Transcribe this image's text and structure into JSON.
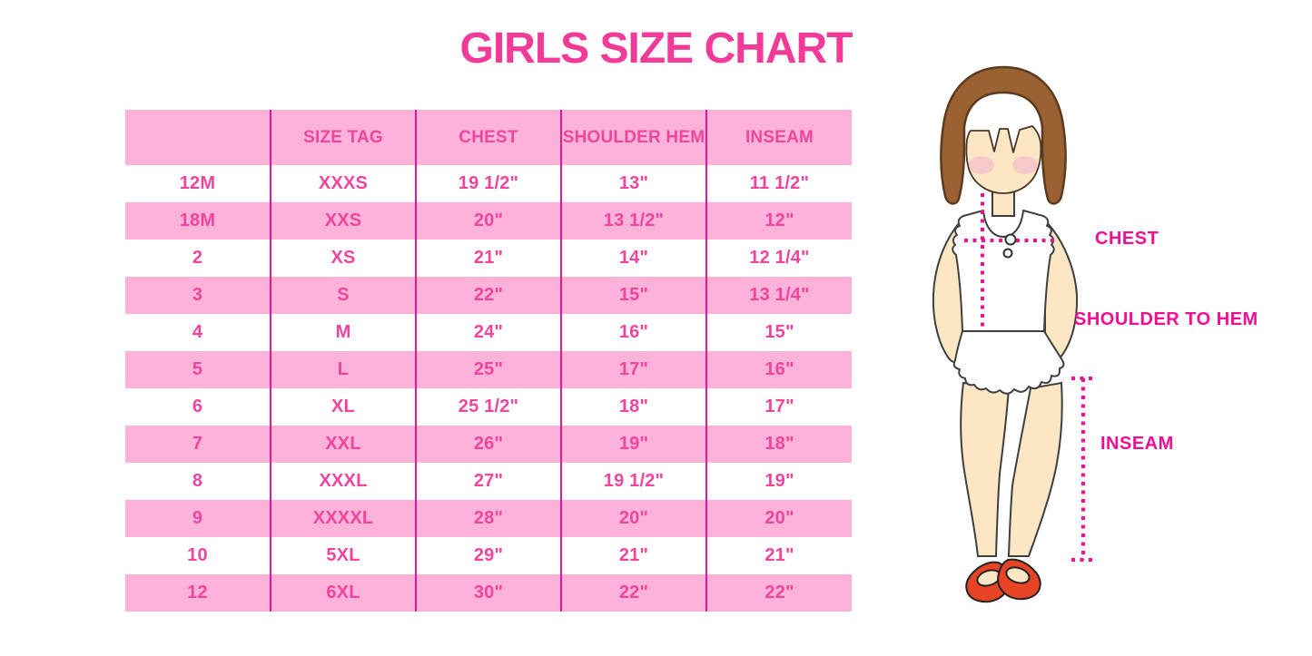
{
  "title": "GIRLS SIZE CHART",
  "chart_data": {
    "type": "table",
    "title": "GIRLS SIZE CHART",
    "columns": [
      "",
      "SIZE TAG",
      "CHEST",
      "SHOULDER HEM",
      "INSEAM"
    ],
    "rows": [
      [
        "12M",
        "XXXS",
        "19 1/2\"",
        "13\"",
        "11 1/2\""
      ],
      [
        "18M",
        "XXS",
        "20\"",
        "13 1/2\"",
        "12\""
      ],
      [
        "2",
        "XS",
        "21\"",
        "14\"",
        "12 1/4\""
      ],
      [
        "3",
        "S",
        "22\"",
        "15\"",
        "13 1/4\""
      ],
      [
        "4",
        "M",
        "24\"",
        "16\"",
        "15\""
      ],
      [
        "5",
        "L",
        "25\"",
        "17\"",
        "16\""
      ],
      [
        "6",
        "XL",
        "25 1/2\"",
        "18\"",
        "17\""
      ],
      [
        "7",
        "XXL",
        "26\"",
        "19\"",
        "18\""
      ],
      [
        "8",
        "XXXL",
        "27\"",
        "19 1/2\"",
        "19\""
      ],
      [
        "9",
        "XXXXL",
        "28\"",
        "20\"",
        "20\""
      ],
      [
        "10",
        "5XL",
        "29\"",
        "21\"",
        "21\""
      ],
      [
        "12",
        "6XL",
        "30\"",
        "22\"",
        "22\""
      ]
    ]
  },
  "figure": {
    "labels": {
      "chest": "CHEST",
      "shoulder_to_hem": "SHOULDER TO HEM",
      "inseam": "INSEAM"
    }
  },
  "colors": {
    "title_pink": "#F23A99",
    "row_pink": "#FDB3D9",
    "divider_pink": "#EB1690",
    "table_text_pink": "#F0459E",
    "label_magenta": "#F30D93",
    "hair_brown": "#9A6132",
    "skin_tone": "#FBE7C3",
    "blush_pink": "#F7C3CD",
    "shoe_red": "#E74426",
    "outline_gray": "#3F3F3F"
  }
}
